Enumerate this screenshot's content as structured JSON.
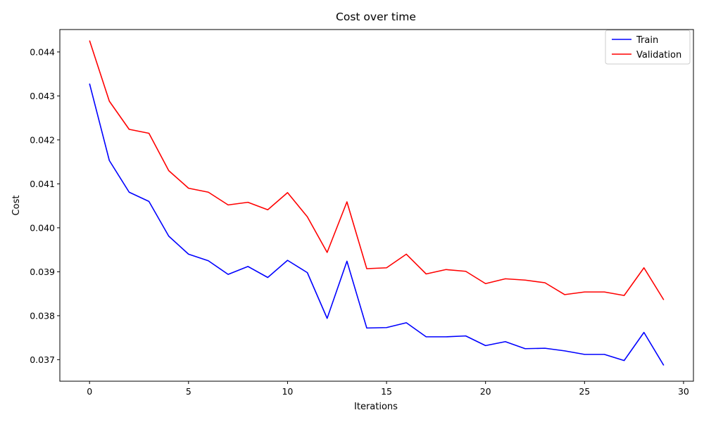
{
  "chart_data": {
    "type": "line",
    "title": "Cost over time",
    "xlabel": "Iterations",
    "ylabel": "Cost",
    "xlim": [
      -1.5,
      30.5
    ],
    "ylim": [
      0.03651,
      0.04451
    ],
    "xticks": [
      0,
      5,
      10,
      15,
      20,
      25,
      30
    ],
    "yticks": [
      0.037,
      0.038,
      0.039,
      0.04,
      0.041,
      0.042,
      0.043,
      0.044
    ],
    "ytick_labels": [
      "0.037",
      "0.038",
      "0.039",
      "0.040",
      "0.041",
      "0.042",
      "0.043",
      "0.044"
    ],
    "grid": false,
    "legend_position": "top-right",
    "x": [
      0,
      1,
      2,
      3,
      4,
      5,
      6,
      7,
      8,
      9,
      10,
      11,
      12,
      13,
      14,
      15,
      16,
      17,
      18,
      19,
      20,
      21,
      22,
      23,
      24,
      25,
      26,
      27,
      28,
      29
    ],
    "series": [
      {
        "name": "Train",
        "color": "#0000ff",
        "values": [
          0.04328,
          0.04153,
          0.04081,
          0.0406,
          0.03981,
          0.0394,
          0.03925,
          0.03894,
          0.03912,
          0.03887,
          0.03926,
          0.03898,
          0.03794,
          0.03924,
          0.03772,
          0.03773,
          0.03784,
          0.03752,
          0.03752,
          0.03754,
          0.03732,
          0.03741,
          0.03725,
          0.03726,
          0.0372,
          0.03712,
          0.03712,
          0.03698,
          0.03762,
          0.03687
        ]
      },
      {
        "name": "Validation",
        "color": "#ff0000",
        "values": [
          0.04426,
          0.04288,
          0.04224,
          0.04215,
          0.0413,
          0.0409,
          0.04081,
          0.04052,
          0.04058,
          0.04041,
          0.0408,
          0.04025,
          0.03944,
          0.04059,
          0.03907,
          0.03909,
          0.0394,
          0.03895,
          0.03905,
          0.03901,
          0.03873,
          0.03884,
          0.03881,
          0.03875,
          0.03848,
          0.03854,
          0.03854,
          0.03846,
          0.03909,
          0.03836
        ]
      }
    ]
  }
}
